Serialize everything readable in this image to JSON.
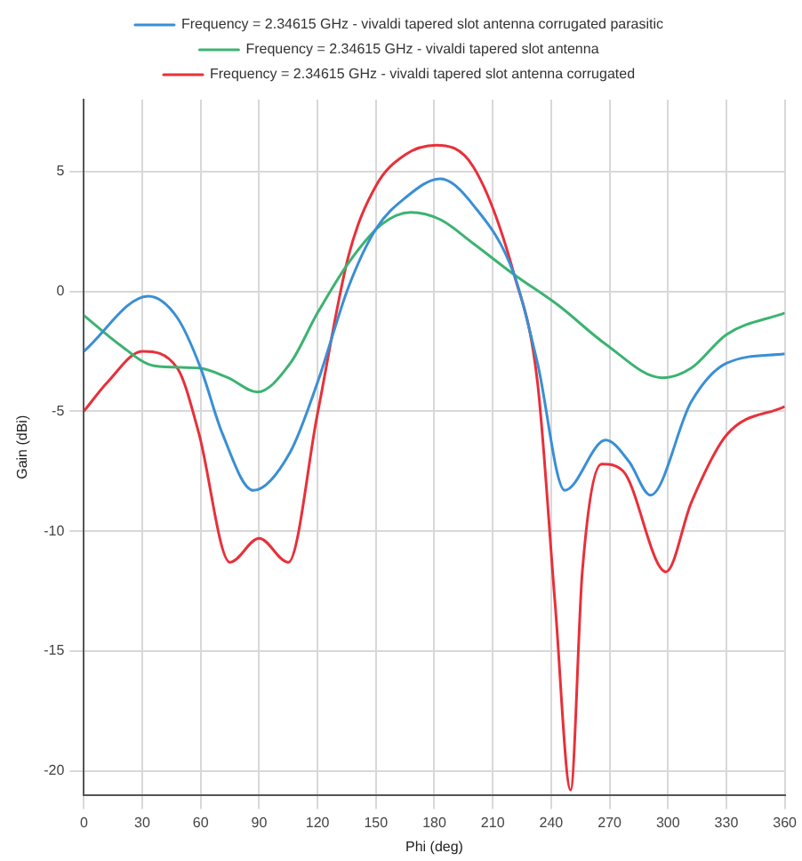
{
  "chart_data": {
    "type": "line",
    "xlabel": "Phi (deg)",
    "ylabel": "Gain (dBi)",
    "xlim": [
      0,
      360
    ],
    "xticks": [
      0,
      30,
      60,
      90,
      120,
      150,
      180,
      210,
      240,
      270,
      300,
      330,
      360
    ],
    "ylim": [
      -21,
      8
    ],
    "yticks": [
      -20,
      -15,
      -10,
      -5,
      0,
      5
    ],
    "grid": true,
    "legend": "top",
    "marker": "none",
    "line_style": "solid",
    "series": [
      {
        "name": "Frequency = 2.34615 GHz - vivaldi tapered slot antenna corrugated parasitic",
        "color": "#3a8fd4",
        "x": [
          0,
          33,
          48,
          60,
          71,
          87,
          106,
          120,
          136,
          150,
          165,
          183,
          200,
          221,
          233,
          247,
          268,
          280,
          291,
          312,
          330,
          360
        ],
        "values": [
          -2.5,
          -0.2,
          -1.1,
          -3.2,
          -5.9,
          -8.3,
          -6.7,
          -3.8,
          0.2,
          2.6,
          3.9,
          4.7,
          3.6,
          0.7,
          -3,
          -8.3,
          -6.2,
          -7.1,
          -8.5,
          -4.6,
          -3,
          -2.6
        ]
      },
      {
        "name": "Frequency = 2.34615 GHz - vivaldi tapered slot antenna",
        "color": "#3cb371",
        "x": [
          0,
          18,
          36,
          59,
          74,
          89,
          106,
          120,
          136,
          153,
          168,
          183,
          200,
          221,
          244,
          268,
          297,
          312,
          330,
          360
        ],
        "values": [
          -1,
          -2.2,
          -3.1,
          -3.2,
          -3.6,
          -4.2,
          -3,
          -0.9,
          1.2,
          2.8,
          3.3,
          3,
          2,
          0.7,
          -0.6,
          -2.2,
          -3.6,
          -3.2,
          -1.8,
          -0.9
        ]
      },
      {
        "name": "Frequency = 2.34615 GHz - vivaldi tapered slot antenna corrugated",
        "color": "#e8303a",
        "x": [
          0,
          12,
          30,
          48,
          59,
          75,
          90,
          105,
          120,
          136,
          150,
          165,
          181,
          200,
          221,
          233,
          242,
          250,
          256,
          266,
          277,
          299,
          312,
          330,
          360
        ],
        "values": [
          -5,
          -3.8,
          -2.5,
          -3.2,
          -5.9,
          -11.3,
          -10.3,
          -11.3,
          -5.1,
          1.5,
          4.4,
          5.7,
          6.1,
          5.2,
          0.7,
          -3.8,
          -13,
          -20.8,
          -11.7,
          -7.2,
          -7.5,
          -11.7,
          -8.8,
          -6,
          -4.8
        ]
      }
    ]
  }
}
